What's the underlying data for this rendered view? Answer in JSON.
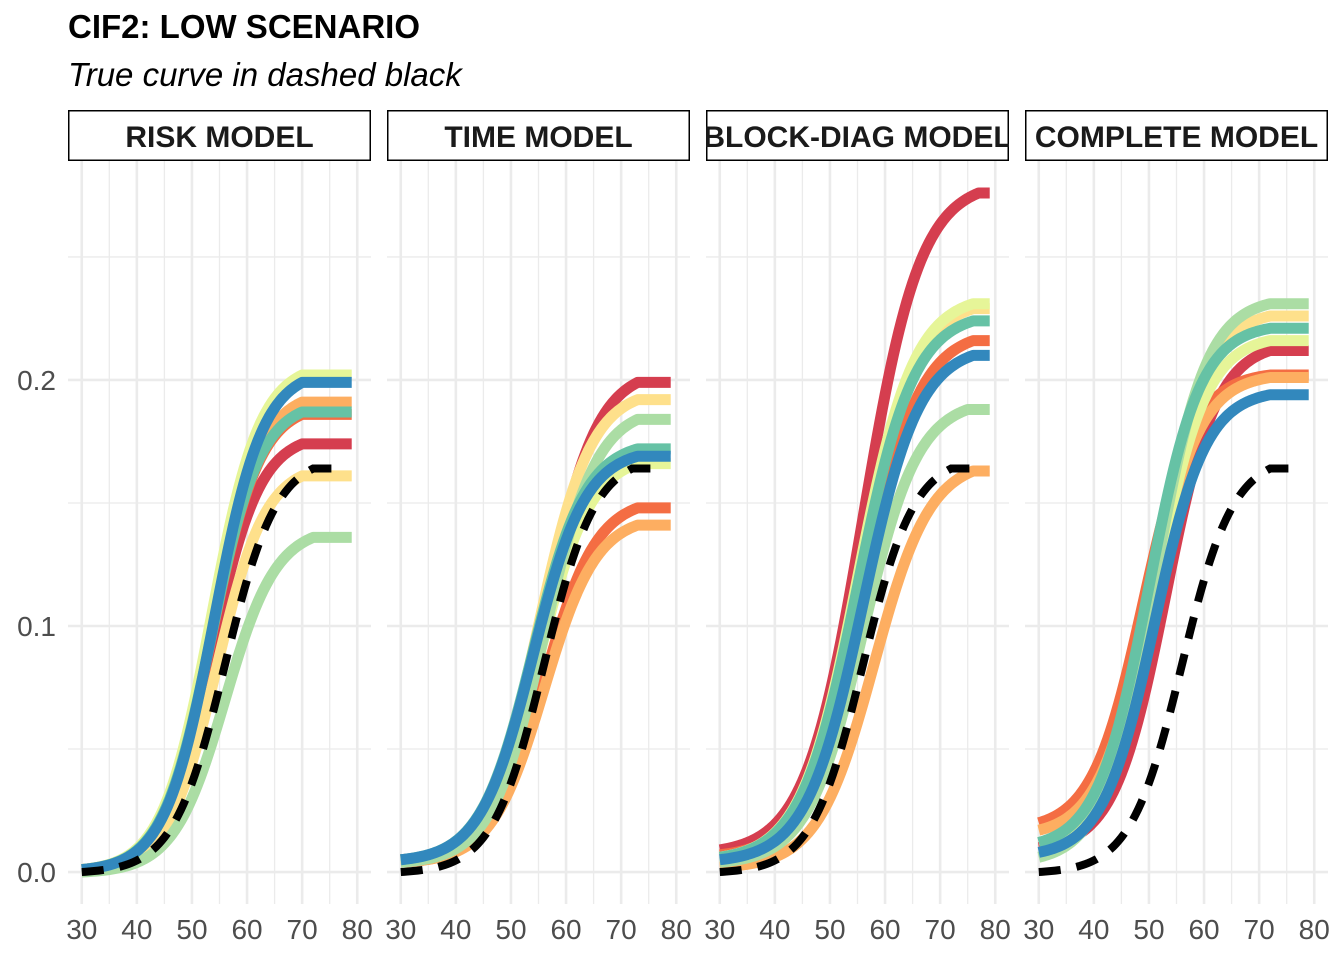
{
  "title": "CIF2: LOW SCENARIO",
  "subtitle": "True curve in dashed black",
  "colors": [
    "#d53e4f",
    "#f46d43",
    "#fdae61",
    "#fee08b",
    "#e6f598",
    "#abdda4",
    "#66c2a5",
    "#3288bd"
  ],
  "chart_data": {
    "type": "line",
    "facets": [
      "RISK MODEL",
      "TIME MODEL",
      "BLOCK-DIAG MODEL",
      "COMPLETE MODEL"
    ],
    "x_ticks": [
      "30",
      "40",
      "50",
      "60",
      "70",
      "80"
    ],
    "y_ticks": [
      "0.0",
      "0.1",
      "0.2"
    ],
    "xlim": [
      27.5,
      82.5
    ],
    "ylim": [
      -0.013,
      0.289
    ],
    "grid": true,
    "true_curve": {
      "style": "dashed",
      "color": "#000000",
      "start": 0.0,
      "end": 0.164,
      "mid": 56,
      "end_x": 72
    },
    "panels": [
      {
        "facet": "RISK MODEL",
        "curves": [
          {
            "color": "#d53e4f",
            "start": 0.001,
            "end": 0.174,
            "mid": 53.5,
            "end_x": 70
          },
          {
            "color": "#f46d43",
            "start": 0.001,
            "end": 0.186,
            "mid": 53.5,
            "end_x": 70
          },
          {
            "color": "#fdae61",
            "start": 0.001,
            "end": 0.191,
            "mid": 53.5,
            "end_x": 70
          },
          {
            "color": "#fee08b",
            "start": 0.001,
            "end": 0.161,
            "mid": 54.5,
            "end_x": 70
          },
          {
            "color": "#e6f598",
            "start": 0.001,
            "end": 0.202,
            "mid": 53.5,
            "end_x": 70
          },
          {
            "color": "#abdda4",
            "start": 0.0,
            "end": 0.136,
            "mid": 56,
            "end_x": 72
          },
          {
            "color": "#66c2a5",
            "start": 0.001,
            "end": 0.187,
            "mid": 53.5,
            "end_x": 70
          },
          {
            "color": "#3288bd",
            "start": 0.001,
            "end": 0.199,
            "mid": 54,
            "end_x": 70
          }
        ]
      },
      {
        "facet": "TIME MODEL",
        "curves": [
          {
            "color": "#d53e4f",
            "start": 0.005,
            "end": 0.199,
            "mid": 56,
            "end_x": 73
          },
          {
            "color": "#f46d43",
            "start": 0.004,
            "end": 0.148,
            "mid": 56,
            "end_x": 73
          },
          {
            "color": "#fdae61",
            "start": 0.004,
            "end": 0.141,
            "mid": 56,
            "end_x": 73
          },
          {
            "color": "#fee08b",
            "start": 0.005,
            "end": 0.192,
            "mid": 55,
            "end_x": 73
          },
          {
            "color": "#e6f598",
            "start": 0.004,
            "end": 0.166,
            "mid": 55,
            "end_x": 73
          },
          {
            "color": "#abdda4",
            "start": 0.004,
            "end": 0.184,
            "mid": 56,
            "end_x": 73
          },
          {
            "color": "#66c2a5",
            "start": 0.005,
            "end": 0.172,
            "mid": 54,
            "end_x": 73
          },
          {
            "color": "#3288bd",
            "start": 0.005,
            "end": 0.169,
            "mid": 54,
            "end_x": 73
          }
        ]
      },
      {
        "facet": "BLOCK-DIAG MODEL",
        "curves": [
          {
            "color": "#d53e4f",
            "start": 0.009,
            "end": 0.276,
            "mid": 56,
            "end_x": 77
          },
          {
            "color": "#f46d43",
            "start": 0.007,
            "end": 0.216,
            "mid": 56,
            "end_x": 76
          },
          {
            "color": "#fdae61",
            "start": 0.002,
            "end": 0.163,
            "mid": 58,
            "end_x": 76
          },
          {
            "color": "#fee08b",
            "start": 0.006,
            "end": 0.229,
            "mid": 55,
            "end_x": 76
          },
          {
            "color": "#e6f598",
            "start": 0.006,
            "end": 0.231,
            "mid": 55,
            "end_x": 76
          },
          {
            "color": "#abdda4",
            "start": 0.004,
            "end": 0.188,
            "mid": 56,
            "end_x": 75
          },
          {
            "color": "#66c2a5",
            "start": 0.006,
            "end": 0.224,
            "mid": 55,
            "end_x": 76
          },
          {
            "color": "#3288bd",
            "start": 0.005,
            "end": 0.21,
            "mid": 56,
            "end_x": 76
          }
        ]
      },
      {
        "facet": "COMPLETE MODEL",
        "curves": [
          {
            "color": "#d53e4f",
            "start": 0.01,
            "end": 0.212,
            "mid": 53,
            "end_x": 72
          },
          {
            "color": "#f46d43",
            "start": 0.02,
            "end": 0.202,
            "mid": 49,
            "end_x": 72
          },
          {
            "color": "#fdae61",
            "start": 0.017,
            "end": 0.201,
            "mid": 50,
            "end_x": 72
          },
          {
            "color": "#fee08b",
            "start": 0.012,
            "end": 0.226,
            "mid": 51,
            "end_x": 72
          },
          {
            "color": "#e6f598",
            "start": 0.012,
            "end": 0.216,
            "mid": 51,
            "end_x": 72
          },
          {
            "color": "#abdda4",
            "start": 0.006,
            "end": 0.231,
            "mid": 51,
            "end_x": 72
          },
          {
            "color": "#66c2a5",
            "start": 0.012,
            "end": 0.221,
            "mid": 50,
            "end_x": 72
          },
          {
            "color": "#3288bd",
            "start": 0.008,
            "end": 0.194,
            "mid": 51,
            "end_x": 72
          }
        ]
      }
    ]
  }
}
